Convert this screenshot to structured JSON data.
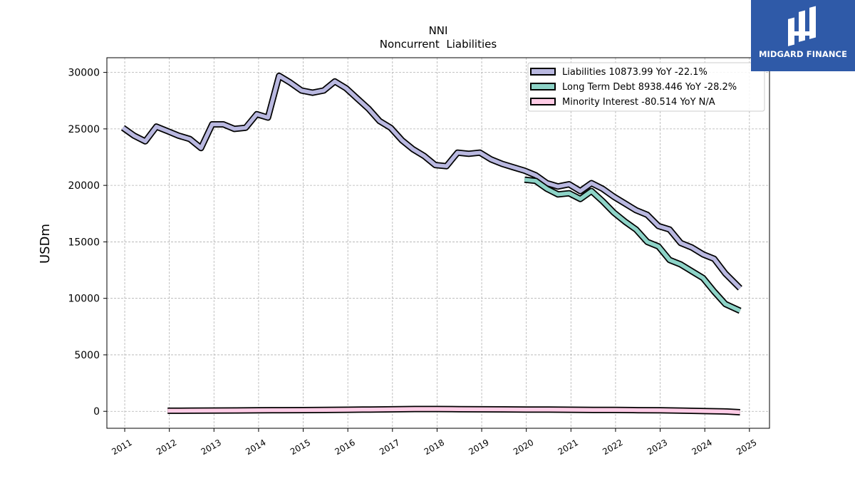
{
  "brand": {
    "name": "MIDGARD FINANCE",
    "logo_icon": "midgard-mark-icon",
    "background": "#2f5aa8"
  },
  "chart_data": {
    "type": "line",
    "title": "NNI",
    "subtitle": "Noncurrent  Liabilities",
    "ylabel": "USDm",
    "xlabel": "",
    "xlim": [
      2010.6,
      2025.45
    ],
    "ylim": [
      -1500,
      31300
    ],
    "yticks": [
      0,
      5000,
      10000,
      15000,
      20000,
      25000,
      30000
    ],
    "xticks": [
      2011,
      2012,
      2013,
      2014,
      2015,
      2016,
      2017,
      2018,
      2019,
      2020,
      2021,
      2022,
      2023,
      2024,
      2025
    ],
    "grid": true,
    "legend_position": "top-right",
    "series": [
      {
        "name": "Liabilities  10873.99 YoY -22.1%",
        "color": "#b9b8e0",
        "x": [
          2010.96,
          2011.21,
          2011.46,
          2011.71,
          2011.96,
          2012.21,
          2012.46,
          2012.71,
          2012.96,
          2013.21,
          2013.46,
          2013.71,
          2013.96,
          2014.21,
          2014.46,
          2014.71,
          2014.96,
          2015.21,
          2015.46,
          2015.71,
          2015.96,
          2016.21,
          2016.46,
          2016.71,
          2016.96,
          2017.21,
          2017.46,
          2017.71,
          2017.96,
          2018.21,
          2018.46,
          2018.71,
          2018.96,
          2019.21,
          2019.46,
          2019.71,
          2019.96,
          2020.21,
          2020.46,
          2020.71,
          2020.96,
          2021.21,
          2021.46,
          2021.71,
          2021.96,
          2022.21,
          2022.46,
          2022.71,
          2022.96,
          2023.21,
          2023.46,
          2023.71,
          2023.96,
          2024.21,
          2024.46,
          2024.79
        ],
        "values": [
          25100,
          24400,
          23900,
          25200,
          24800,
          24400,
          24100,
          23300,
          25400,
          25400,
          25000,
          25100,
          26300,
          26000,
          29700,
          29100,
          28400,
          28200,
          28400,
          29200,
          28600,
          27700,
          26800,
          25700,
          25100,
          24000,
          23200,
          22600,
          21800,
          21700,
          22900,
          22800,
          22900,
          22300,
          21900,
          21600,
          21300,
          20900,
          20200,
          19900,
          20100,
          19500,
          20200,
          19700,
          19000,
          18400,
          17800,
          17400,
          16400,
          16100,
          14900,
          14500,
          13900,
          13500,
          12200,
          10900
        ]
      },
      {
        "name": "Long Term Debt  8938.446 YoY -28.2%",
        "color": "#8dd3c7",
        "x": [
          2019.96,
          2020.21,
          2020.46,
          2020.71,
          2020.96,
          2021.21,
          2021.46,
          2021.71,
          2021.96,
          2022.21,
          2022.46,
          2022.71,
          2022.96,
          2023.21,
          2023.46,
          2023.71,
          2023.96,
          2024.21,
          2024.46,
          2024.79
        ],
        "values": [
          20500,
          20400,
          19700,
          19200,
          19300,
          18800,
          19500,
          18600,
          17600,
          16800,
          16100,
          15000,
          14600,
          13400,
          13000,
          12400,
          11800,
          10600,
          9500,
          8900
        ]
      },
      {
        "name": "Minority Interest  -80.514 YoY N/A",
        "color": "#ffcce6",
        "x": [
          2011.96,
          2012.5,
          2013,
          2013.5,
          2014,
          2014.5,
          2015,
          2015.5,
          2016,
          2016.5,
          2017,
          2017.5,
          2018,
          2018.5,
          2019,
          2019.5,
          2020,
          2020.5,
          2021,
          2021.5,
          2022,
          2022.5,
          2023,
          2023.5,
          2024,
          2024.5,
          2024.79
        ],
        "values": [
          50,
          60,
          70,
          80,
          90,
          100,
          110,
          120,
          140,
          160,
          180,
          200,
          200,
          190,
          180,
          170,
          160,
          150,
          140,
          130,
          120,
          100,
          90,
          60,
          20,
          -20,
          -80
        ]
      }
    ]
  }
}
